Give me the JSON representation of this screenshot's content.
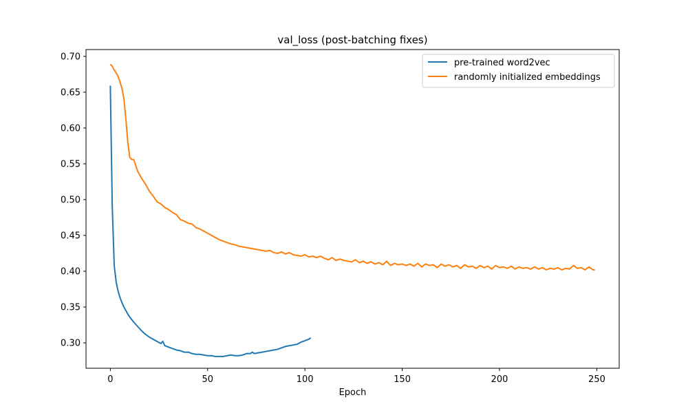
{
  "chart_data": {
    "type": "line",
    "title": "val_loss (post-batching fixes)",
    "xlabel": "Epoch",
    "ylabel": "",
    "xlim": [
      -12.5,
      261.5
    ],
    "ylim": [
      0.2645,
      0.7095
    ],
    "xticks": [
      0,
      50,
      100,
      150,
      200,
      250
    ],
    "yticks": [
      "0.30",
      "0.35",
      "0.40",
      "0.45",
      "0.50",
      "0.55",
      "0.60",
      "0.65",
      "0.70"
    ],
    "grid": false,
    "legend_position": "top-right",
    "series": [
      {
        "name": "pre-trained word2vec",
        "color": "#1f77b4",
        "x": [
          0,
          1,
          2,
          3,
          4,
          5,
          6,
          7,
          8,
          9,
          10,
          12,
          14,
          16,
          18,
          20,
          22,
          24,
          26,
          27,
          28,
          30,
          32,
          34,
          36,
          38,
          40,
          42,
          44,
          46,
          48,
          50,
          52,
          54,
          56,
          58,
          60,
          62,
          64,
          66,
          68,
          70,
          72,
          73,
          74,
          76,
          78,
          80,
          82,
          84,
          86,
          88,
          90,
          92,
          94,
          96,
          98,
          100,
          102,
          103
        ],
        "y": [
          0.659,
          0.49,
          0.408,
          0.385,
          0.372,
          0.363,
          0.356,
          0.35,
          0.345,
          0.34,
          0.336,
          0.329,
          0.323,
          0.317,
          0.312,
          0.308,
          0.305,
          0.302,
          0.299,
          0.302,
          0.296,
          0.294,
          0.292,
          0.29,
          0.289,
          0.287,
          0.287,
          0.285,
          0.284,
          0.284,
          0.283,
          0.282,
          0.282,
          0.281,
          0.281,
          0.281,
          0.282,
          0.283,
          0.282,
          0.282,
          0.283,
          0.285,
          0.285,
          0.287,
          0.285,
          0.286,
          0.287,
          0.288,
          0.289,
          0.29,
          0.291,
          0.293,
          0.295,
          0.296,
          0.297,
          0.298,
          0.301,
          0.303,
          0.305,
          0.307
        ]
      },
      {
        "name": "randomly initialized embeddings",
        "color": "#ff7f0e",
        "x": [
          0,
          1,
          2,
          3,
          4,
          5,
          6,
          7,
          8,
          9,
          10,
          11,
          12,
          13,
          14,
          15,
          16,
          18,
          20,
          22,
          24,
          26,
          28,
          30,
          32,
          34,
          36,
          38,
          40,
          42,
          44,
          46,
          48,
          50,
          52,
          54,
          56,
          58,
          60,
          62,
          64,
          66,
          68,
          70,
          72,
          74,
          76,
          78,
          80,
          82,
          84,
          86,
          88,
          90,
          92,
          94,
          96,
          98,
          100,
          102,
          104,
          106,
          108,
          110,
          112,
          114,
          116,
          118,
          120,
          122,
          124,
          126,
          128,
          130,
          132,
          134,
          136,
          138,
          140,
          142,
          144,
          146,
          148,
          150,
          152,
          154,
          156,
          158,
          160,
          162,
          164,
          166,
          168,
          170,
          172,
          174,
          176,
          178,
          180,
          182,
          184,
          186,
          188,
          190,
          192,
          194,
          196,
          198,
          200,
          202,
          204,
          206,
          208,
          210,
          212,
          214,
          216,
          218,
          220,
          222,
          224,
          226,
          228,
          230,
          232,
          234,
          236,
          238,
          240,
          242,
          244,
          246,
          248,
          249
        ],
        "y": [
          0.689,
          0.686,
          0.681,
          0.677,
          0.672,
          0.664,
          0.655,
          0.64,
          0.612,
          0.58,
          0.559,
          0.556,
          0.556,
          0.548,
          0.54,
          0.535,
          0.53,
          0.522,
          0.512,
          0.505,
          0.497,
          0.494,
          0.489,
          0.486,
          0.482,
          0.479,
          0.472,
          0.47,
          0.467,
          0.466,
          0.461,
          0.459,
          0.456,
          0.453,
          0.45,
          0.447,
          0.444,
          0.442,
          0.44,
          0.438,
          0.437,
          0.435,
          0.434,
          0.433,
          0.432,
          0.431,
          0.43,
          0.429,
          0.428,
          0.429,
          0.426,
          0.425,
          0.427,
          0.424,
          0.426,
          0.423,
          0.422,
          0.421,
          0.423,
          0.42,
          0.421,
          0.419,
          0.421,
          0.418,
          0.416,
          0.419,
          0.415,
          0.417,
          0.415,
          0.414,
          0.413,
          0.416,
          0.412,
          0.414,
          0.411,
          0.413,
          0.41,
          0.412,
          0.409,
          0.414,
          0.408,
          0.411,
          0.409,
          0.41,
          0.408,
          0.41,
          0.407,
          0.411,
          0.406,
          0.41,
          0.408,
          0.409,
          0.405,
          0.41,
          0.407,
          0.409,
          0.406,
          0.408,
          0.404,
          0.409,
          0.406,
          0.407,
          0.404,
          0.408,
          0.405,
          0.407,
          0.403,
          0.408,
          0.405,
          0.406,
          0.404,
          0.407,
          0.403,
          0.406,
          0.404,
          0.405,
          0.403,
          0.406,
          0.403,
          0.405,
          0.402,
          0.404,
          0.403,
          0.405,
          0.402,
          0.404,
          0.403,
          0.408,
          0.404,
          0.405,
          0.402,
          0.406,
          0.402,
          0.402
        ]
      }
    ]
  }
}
